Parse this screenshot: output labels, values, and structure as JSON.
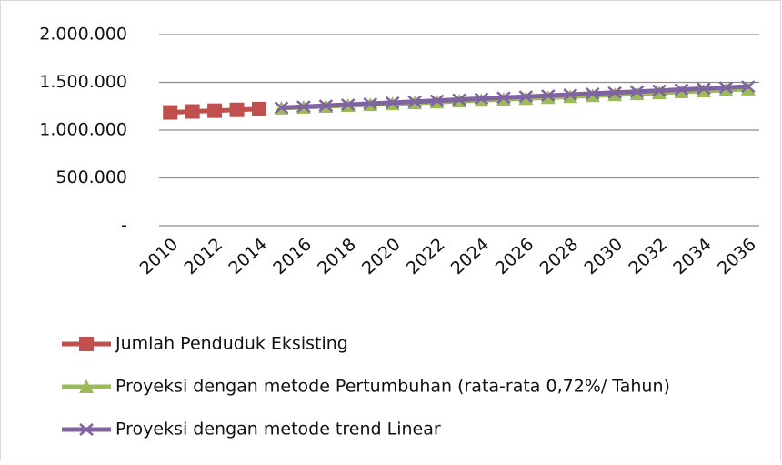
{
  "chart_data": {
    "type": "line",
    "categories": [
      "2010",
      null,
      "2012",
      null,
      "2014",
      null,
      "2016",
      null,
      "2018",
      null,
      "2020",
      null,
      "2022",
      null,
      "2024",
      null,
      "2026",
      null,
      "2028",
      null,
      "2030",
      null,
      "2032",
      null,
      "2034",
      null,
      "2036"
    ],
    "series": [
      {
        "name": "Jumlah Penduduk Eksisting",
        "color": "#c0504d",
        "marker": "square",
        "values": [
          1185000,
          1195000,
          1203000,
          1212000,
          1220000,
          null,
          null,
          null,
          null,
          null,
          null,
          null,
          null,
          null,
          null,
          null,
          null,
          null,
          null,
          null,
          null,
          null,
          null,
          null,
          null,
          null,
          null
        ]
      },
      {
        "name": "Proyeksi dengan metode Pertumbuhan (rata-rata 0,72%/ Tahun)",
        "color": "#9bbb59",
        "marker": "triangle",
        "values": [
          null,
          null,
          null,
          null,
          null,
          1230000,
          1239000,
          1248000,
          1257000,
          1266000,
          1275000,
          1284000,
          1293000,
          1303000,
          1312000,
          1321000,
          1331000,
          1341000,
          1350000,
          1360000,
          1370000,
          1380000,
          1390000,
          1400000,
          1410000,
          1420000,
          1430000
        ]
      },
      {
        "name": "Proyeksi dengan metode trend Linear",
        "color": "#8064a2",
        "marker": "x",
        "values": [
          null,
          null,
          null,
          null,
          null,
          1235000,
          1245500,
          1256000,
          1266500,
          1277000,
          1287500,
          1298000,
          1308500,
          1319000,
          1329500,
          1340000,
          1350500,
          1361000,
          1371500,
          1382000,
          1392500,
          1403000,
          1413500,
          1424000,
          1434500,
          1445000,
          1455500
        ]
      }
    ],
    "ylim": [
      0,
      2000000
    ],
    "yticks": [
      {
        "value": 0,
        "label": "-"
      },
      {
        "value": 500000,
        "label": "500.000"
      },
      {
        "value": 1000000,
        "label": "1.000.000"
      },
      {
        "value": 1500000,
        "label": "1.500.000"
      },
      {
        "value": 2000000,
        "label": "2.000.000"
      }
    ],
    "grid": true,
    "legend": "bottom"
  }
}
